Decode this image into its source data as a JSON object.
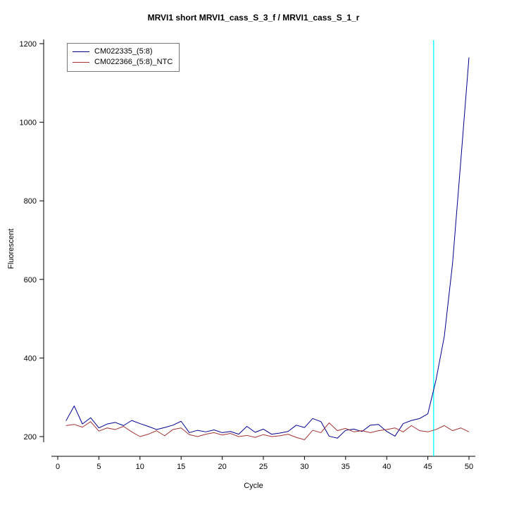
{
  "title": "MRVI1 short MRVI1_cass_S_3_f / MRVI1_cass_S_1_r",
  "axes": {
    "xlabel": "Cycle",
    "ylabel": "Fluorescent"
  },
  "legend": {
    "items": [
      {
        "label": "CM022335_(5:8)",
        "color": "#00008B"
      },
      {
        "label": "CM022366_(5:8)_NTC",
        "color": "#A03232"
      }
    ]
  },
  "chart_data": {
    "type": "line",
    "title": "MRVI1 short MRVI1_cass_S_3_f / MRVI1_cass_S_1_r",
    "xlabel": "Cycle",
    "ylabel": "Fluorescent",
    "xlim": [
      0,
      50
    ],
    "ylim": [
      200,
      1200
    ],
    "xticks": [
      0,
      5,
      10,
      15,
      20,
      25,
      30,
      35,
      40,
      45,
      50
    ],
    "yticks": [
      200,
      400,
      600,
      800,
      1000,
      1200
    ],
    "grid": false,
    "legend_position": "top-left",
    "vline": {
      "x": 45.7,
      "color": "#00FFFF"
    },
    "x": [
      1,
      2,
      3,
      4,
      5,
      6,
      7,
      8,
      9,
      10,
      11,
      12,
      13,
      14,
      15,
      16,
      17,
      18,
      19,
      20,
      21,
      22,
      23,
      24,
      25,
      26,
      27,
      28,
      29,
      30,
      31,
      32,
      33,
      34,
      35,
      36,
      37,
      38,
      39,
      40,
      41,
      42,
      43,
      44,
      45,
      46,
      47,
      48,
      49,
      50
    ],
    "series": [
      {
        "name": "CM022335_(5:8)",
        "color": "#00008B",
        "values": [
          240,
          278,
          232,
          248,
          222,
          232,
          236,
          228,
          241,
          233,
          226,
          218,
          223,
          229,
          239,
          210,
          216,
          212,
          217,
          210,
          213,
          206,
          226,
          211,
          219,
          206,
          209,
          213,
          229,
          223,
          246,
          238,
          201,
          196,
          216,
          219,
          213,
          229,
          231,
          213,
          201,
          233,
          241,
          246,
          258,
          345,
          455,
          640,
          900,
          1165
        ]
      },
      {
        "name": "CM022366_(5:8)_NTC",
        "color": "#A03232",
        "values": [
          228,
          231,
          224,
          238,
          214,
          222,
          218,
          226,
          212,
          200,
          206,
          215,
          202,
          218,
          222,
          205,
          200,
          206,
          210,
          204,
          208,
          200,
          203,
          198,
          205,
          200,
          202,
          206,
          198,
          192,
          216,
          210,
          235,
          215,
          221,
          212,
          215,
          210,
          215,
          218,
          222,
          212,
          228,
          215,
          212,
          218,
          228,
          215,
          222,
          212
        ]
      }
    ]
  }
}
